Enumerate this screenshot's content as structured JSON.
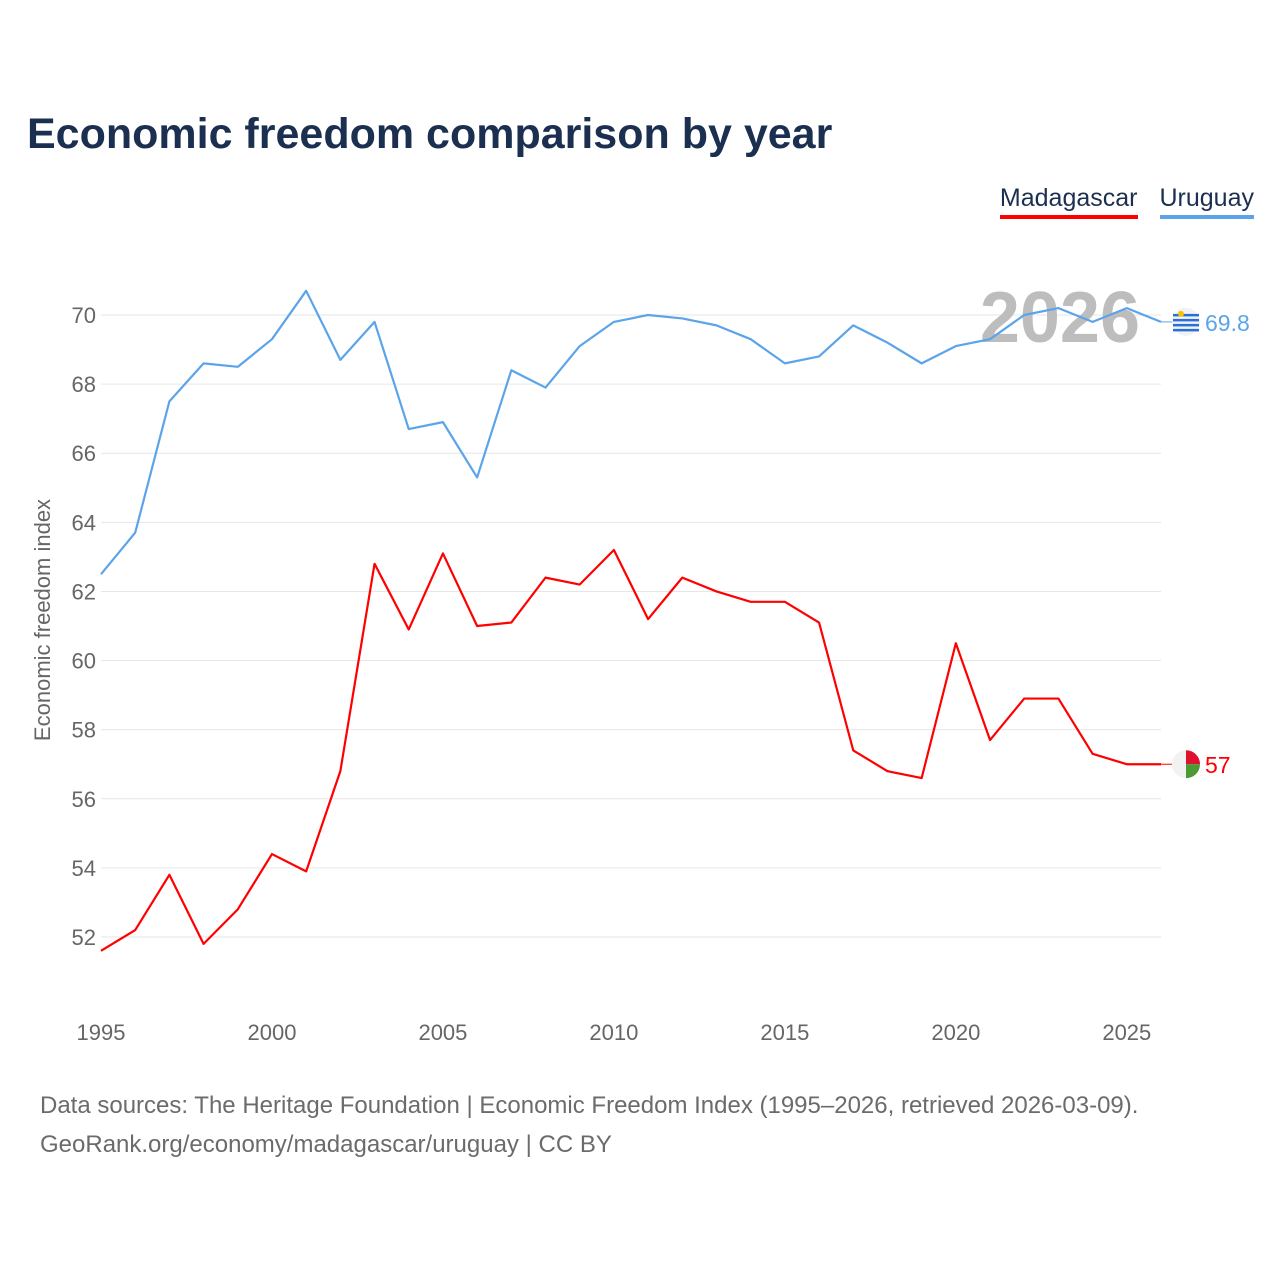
{
  "chart_data": {
    "type": "line",
    "title": "Economic freedom comparison by year",
    "ylabel": "Economic freedom index",
    "xlabel": "",
    "ylim": [
      50.5,
      71.5
    ],
    "xlim": [
      1995,
      2026
    ],
    "yticks": [
      52,
      54,
      56,
      58,
      60,
      62,
      64,
      66,
      68,
      70
    ],
    "xticks": [
      1995,
      2000,
      2005,
      2010,
      2015,
      2020,
      2025
    ],
    "grid": true,
    "legend_position": "top-right",
    "current_year_label": "2026",
    "x": [
      1995,
      1996,
      1997,
      1998,
      1999,
      2000,
      2001,
      2002,
      2003,
      2004,
      2005,
      2006,
      2007,
      2008,
      2009,
      2010,
      2011,
      2012,
      2013,
      2014,
      2015,
      2016,
      2017,
      2018,
      2019,
      2020,
      2021,
      2022,
      2023,
      2024,
      2025,
      2026
    ],
    "series": [
      {
        "name": "Madagascar",
        "color": "#ff0000",
        "end_label": "57",
        "values": [
          51.6,
          52.2,
          53.8,
          51.8,
          52.8,
          54.4,
          53.9,
          56.8,
          62.8,
          60.9,
          63.1,
          61.0,
          61.1,
          62.4,
          62.2,
          63.2,
          61.2,
          62.4,
          62.0,
          61.7,
          61.7,
          61.1,
          57.4,
          56.8,
          56.6,
          60.5,
          57.7,
          58.9,
          58.9,
          57.3,
          57.0,
          57.0
        ]
      },
      {
        "name": "Uruguay",
        "color": "#5ba4ea",
        "end_label": "69.8",
        "values": [
          62.5,
          63.7,
          67.5,
          68.6,
          68.5,
          69.3,
          70.7,
          68.7,
          69.8,
          66.7,
          66.9,
          65.3,
          68.4,
          67.9,
          69.1,
          69.8,
          70.0,
          69.9,
          69.7,
          69.3,
          68.6,
          68.8,
          69.7,
          69.2,
          68.6,
          69.1,
          69.3,
          70.0,
          70.2,
          69.8,
          70.2,
          69.8
        ]
      }
    ]
  },
  "source": {
    "line1": "Data sources: The Heritage Foundation | Economic Freedom Index (1995–2026, retrieved 2026-03-09).",
    "line2": "GeoRank.org/economy/madagascar/uruguay | CC BY"
  }
}
